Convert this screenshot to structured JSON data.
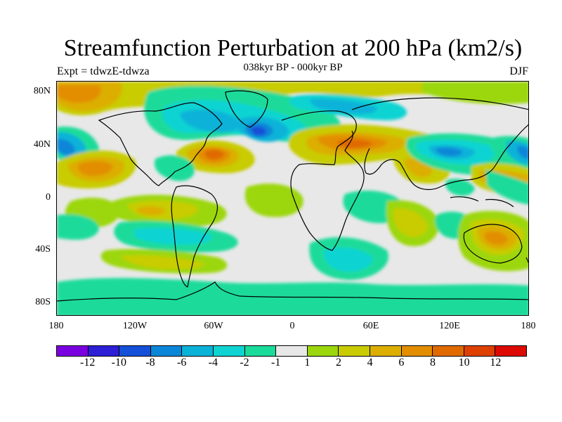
{
  "title": "Streamfunction Perturbation at 200 hPa (km2/s)",
  "subtitle": "038kyr BP - 000kyr BP",
  "left_string": "Expt = tdwzE-tdwza",
  "right_string": "DJF",
  "y_ticks": [
    "80N",
    "40N",
    "0",
    "40S",
    "80S"
  ],
  "x_ticks": [
    "180",
    "120W",
    "60W",
    "0",
    "60E",
    "120E",
    "180"
  ],
  "colorbar": {
    "colors": [
      "#7a00e0",
      "#2c1fd6",
      "#1450d8",
      "#0a86d8",
      "#0ab2d8",
      "#10d4d2",
      "#1adb9a",
      "#e8e8e8",
      "#9cd70e",
      "#c8cc00",
      "#dcae00",
      "#e28e00",
      "#e06a00",
      "#de4000",
      "#dc0a00"
    ],
    "labels": [
      "-12",
      "-10",
      "-8",
      "-6",
      "-4",
      "-2",
      "-1",
      "1",
      "2",
      "4",
      "6",
      "8",
      "10",
      "12"
    ]
  },
  "map_data": {
    "lon_range": [
      -180,
      180
    ],
    "lat_range": [
      -90,
      90
    ],
    "background_level": "near zero (-1 to 1)",
    "notable_features": [
      {
        "lon": -65,
        "lat": 35,
        "level": "10",
        "label": "positive maximum off US east coast"
      },
      {
        "lon": -25,
        "lat": 48,
        "level": "-8",
        "label": "negative center North Atlantic"
      },
      {
        "lon": -90,
        "lat": 52,
        "level": "-6",
        "label": "negative over northern North America"
      },
      {
        "lon": -175,
        "lat": 38,
        "level": "-8",
        "label": "negative center North Pacific (west)"
      },
      {
        "lon": 175,
        "lat": 38,
        "level": "-6",
        "label": "negative center North Pacific (east)"
      },
      {
        "lon": 120,
        "lat": 32,
        "level": "-6",
        "label": "negative over East Asia"
      },
      {
        "lon": 25,
        "lat": 40,
        "level": "8",
        "label": "positive over Mediterranean / Eurasia"
      },
      {
        "lon": -150,
        "lat": 25,
        "level": "6",
        "label": "positive subtropical North Pacific"
      },
      {
        "lon": 150,
        "lat": -30,
        "level": "6",
        "label": "positive over eastern Australia"
      },
      {
        "lon": 30,
        "lat": -45,
        "level": "-2",
        "label": "negative South Atlantic / Indian sector"
      }
    ]
  }
}
